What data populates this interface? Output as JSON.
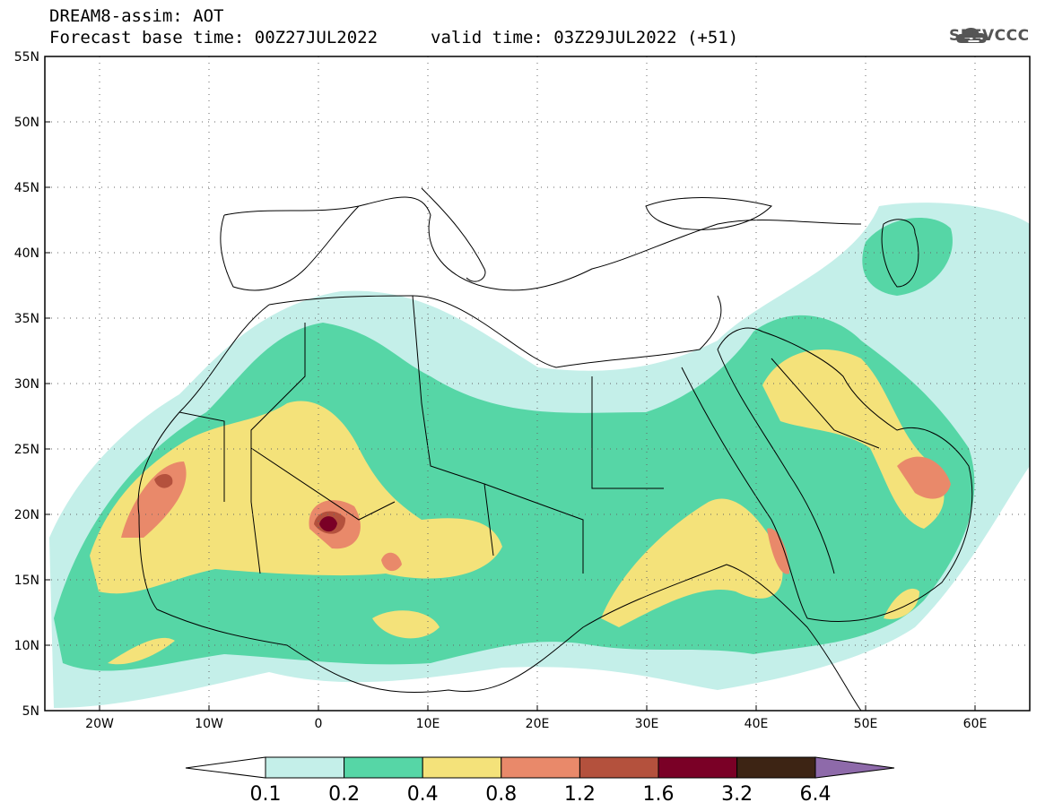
{
  "header": {
    "line1": "DREAM8-assim: AOT",
    "line2": "Forecast base time: 00Z27JUL2022",
    "line3": "valid time: 03Z29JUL2022 (+51)"
  },
  "logo": {
    "text": "SEEVCCC",
    "icon": "cloud-icon"
  },
  "map": {
    "lat_labels": [
      "55N",
      "50N",
      "45N",
      "40N",
      "35N",
      "30N",
      "25N",
      "20N",
      "15N",
      "10N",
      "5N"
    ],
    "lon_labels": [
      "20W",
      "10W",
      "0",
      "10E",
      "20E",
      "30E",
      "40E",
      "50E",
      "60E"
    ],
    "lat_range": [
      5,
      55
    ],
    "lon_range": [
      -25,
      65
    ],
    "grid": "dotted"
  },
  "colorbar": {
    "levels": [
      "0.1",
      "0.2",
      "0.4",
      "0.8",
      "1.2",
      "1.6",
      "3.2",
      "6.4"
    ],
    "colors": [
      "#ffffff",
      "#c4efe9",
      "#56d6a6",
      "#f4e27a",
      "#e9896a",
      "#b4513d",
      "#7a0026",
      "#3d2414",
      "#8e6aaa"
    ]
  }
}
